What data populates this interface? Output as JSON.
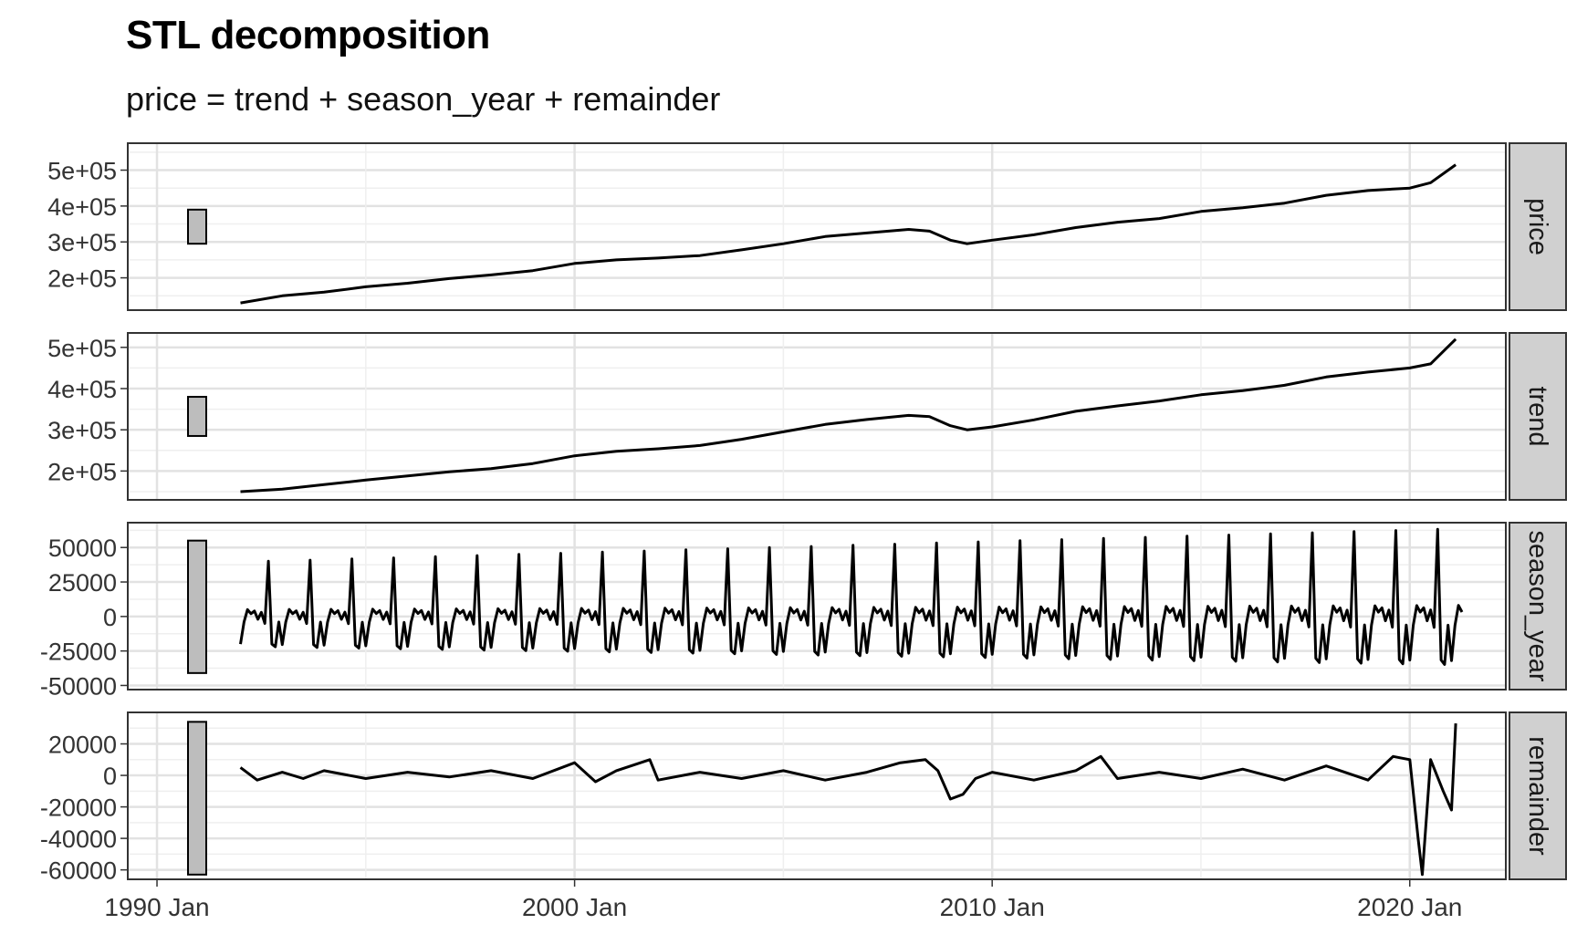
{
  "chart_data": {
    "type": "line",
    "title": "STL decomposition",
    "subtitle": "price = trend + season_year + remainder",
    "x_ticks": [
      "1990 Jan",
      "2000 Jan",
      "2010 Jan",
      "2020 Jan"
    ],
    "x_range": [
      1989.3,
      2022.3
    ],
    "grid": true,
    "line_color": "#000000",
    "strip_color": "#d0d0d0",
    "panels": [
      {
        "name": "price",
        "ylim": [
          110000,
          575000
        ],
        "ticks": [
          200000,
          300000,
          400000,
          500000
        ],
        "tick_labels": [
          "2e+05",
          "3e+05",
          "4e+05",
          "5e+05"
        ],
        "scale_bar": [
          295000,
          390000
        ],
        "points": [
          [
            1992.0,
            130000
          ],
          [
            1993.0,
            150000
          ],
          [
            1994.0,
            160000
          ],
          [
            1995.0,
            175000
          ],
          [
            1996.0,
            185000
          ],
          [
            1997.0,
            198000
          ],
          [
            1998.0,
            208000
          ],
          [
            1999.0,
            220000
          ],
          [
            2000.0,
            240000
          ],
          [
            2001.0,
            250000
          ],
          [
            2002.0,
            255000
          ],
          [
            2003.0,
            262000
          ],
          [
            2004.0,
            278000
          ],
          [
            2005.0,
            295000
          ],
          [
            2006.0,
            315000
          ],
          [
            2007.0,
            325000
          ],
          [
            2008.0,
            335000
          ],
          [
            2008.5,
            330000
          ],
          [
            2009.0,
            305000
          ],
          [
            2009.4,
            295000
          ],
          [
            2010.0,
            305000
          ],
          [
            2011.0,
            320000
          ],
          [
            2012.0,
            340000
          ],
          [
            2013.0,
            355000
          ],
          [
            2014.0,
            365000
          ],
          [
            2015.0,
            385000
          ],
          [
            2016.0,
            395000
          ],
          [
            2017.0,
            408000
          ],
          [
            2018.0,
            430000
          ],
          [
            2019.0,
            443000
          ],
          [
            2020.0,
            450000
          ],
          [
            2020.5,
            465000
          ],
          [
            2021.1,
            515000
          ]
        ]
      },
      {
        "name": "trend",
        "ylim": [
          130000,
          535000
        ],
        "ticks": [
          200000,
          300000,
          400000,
          500000
        ],
        "tick_labels": [
          "2e+05",
          "3e+05",
          "4e+05",
          "5e+05"
        ],
        "scale_bar": [
          285000,
          380000
        ],
        "points": [
          [
            1992.0,
            150000
          ],
          [
            1993.0,
            156000
          ],
          [
            1994.0,
            167000
          ],
          [
            1995.0,
            178000
          ],
          [
            1996.0,
            188000
          ],
          [
            1997.0,
            198000
          ],
          [
            1998.0,
            206000
          ],
          [
            1999.0,
            218000
          ],
          [
            2000.0,
            237000
          ],
          [
            2001.0,
            248000
          ],
          [
            2002.0,
            254000
          ],
          [
            2003.0,
            262000
          ],
          [
            2004.0,
            277000
          ],
          [
            2005.0,
            295000
          ],
          [
            2006.0,
            313000
          ],
          [
            2007.0,
            325000
          ],
          [
            2008.0,
            335000
          ],
          [
            2008.5,
            332000
          ],
          [
            2009.0,
            310000
          ],
          [
            2009.4,
            300000
          ],
          [
            2010.0,
            307000
          ],
          [
            2011.0,
            324000
          ],
          [
            2012.0,
            345000
          ],
          [
            2013.0,
            358000
          ],
          [
            2014.0,
            370000
          ],
          [
            2015.0,
            385000
          ],
          [
            2016.0,
            395000
          ],
          [
            2017.0,
            408000
          ],
          [
            2018.0,
            428000
          ],
          [
            2019.0,
            440000
          ],
          [
            2020.0,
            450000
          ],
          [
            2020.5,
            460000
          ],
          [
            2021.1,
            520000
          ]
        ]
      },
      {
        "name": "season_year",
        "ylim": [
          -53000,
          68000
        ],
        "ticks": [
          -50000,
          -25000,
          0,
          25000,
          50000
        ],
        "tick_labels": [
          "-50000",
          "-25000",
          "0",
          "25000",
          "50000"
        ],
        "scale_bar": [
          -41000,
          55000
        ],
        "seasonal": {
          "start_year": 1992,
          "end_year": 2021,
          "pattern": [
            -20000,
            -4000,
            5000,
            2000,
            4000,
            -2000,
            3000,
            -5000,
            40000,
            -20000,
            -22000,
            -4000
          ],
          "amplitude_growth": 0.6
        }
      },
      {
        "name": "remainder",
        "ylim": [
          -66000,
          40000
        ],
        "ticks": [
          -60000,
          -40000,
          -20000,
          0,
          20000
        ],
        "tick_labels": [
          "-60000",
          "-40000",
          "-20000",
          "0",
          "20000"
        ],
        "scale_bar": [
          -63000,
          34000
        ],
        "points": [
          [
            1992.0,
            5000
          ],
          [
            1992.4,
            -3000
          ],
          [
            1993.0,
            2000
          ],
          [
            1993.5,
            -2000
          ],
          [
            1994.0,
            3000
          ],
          [
            1995.0,
            -2000
          ],
          [
            1996.0,
            2000
          ],
          [
            1997.0,
            -1000
          ],
          [
            1998.0,
            3000
          ],
          [
            1999.0,
            -2000
          ],
          [
            2000.0,
            8000
          ],
          [
            2000.5,
            -4000
          ],
          [
            2001.0,
            3000
          ],
          [
            2001.8,
            10000
          ],
          [
            2002.0,
            -3000
          ],
          [
            2003.0,
            2000
          ],
          [
            2004.0,
            -2000
          ],
          [
            2005.0,
            3000
          ],
          [
            2006.0,
            -3000
          ],
          [
            2007.0,
            2000
          ],
          [
            2007.8,
            8000
          ],
          [
            2008.4,
            10000
          ],
          [
            2008.7,
            3000
          ],
          [
            2009.0,
            -15000
          ],
          [
            2009.3,
            -12000
          ],
          [
            2009.6,
            -2000
          ],
          [
            2010.0,
            2000
          ],
          [
            2011.0,
            -3000
          ],
          [
            2012.0,
            3000
          ],
          [
            2012.6,
            12000
          ],
          [
            2013.0,
            -2000
          ],
          [
            2014.0,
            2000
          ],
          [
            2015.0,
            -2000
          ],
          [
            2016.0,
            4000
          ],
          [
            2017.0,
            -3000
          ],
          [
            2018.0,
            6000
          ],
          [
            2019.0,
            -3000
          ],
          [
            2019.6,
            12000
          ],
          [
            2020.0,
            10000
          ],
          [
            2020.2,
            -40000
          ],
          [
            2020.3,
            -63000
          ],
          [
            2020.5,
            10000
          ],
          [
            2020.8,
            -10000
          ],
          [
            2021.0,
            -22000
          ],
          [
            2021.1,
            33000
          ]
        ]
      }
    ]
  }
}
